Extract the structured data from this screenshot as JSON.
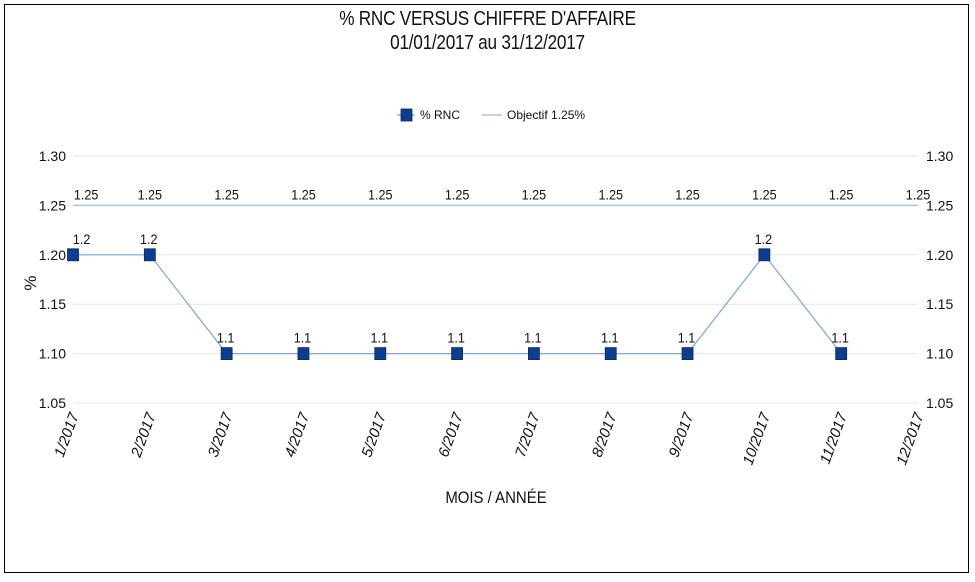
{
  "chart_data": {
    "type": "line",
    "title": "% RNC VERSUS CHIFFRE D'AFFAIRE",
    "subtitle": "01/01/2017 au 31/12/2017",
    "xlabel": "MOIS / ANNÉE",
    "ylabel": "%",
    "categories": [
      "1/2017",
      "2/2017",
      "3/2017",
      "4/2017",
      "5/2017",
      "6/2017",
      "7/2017",
      "8/2017",
      "9/2017",
      "10/2017",
      "11/2017",
      "12/2017"
    ],
    "ylim": [
      1.05,
      1.3
    ],
    "yticks": [
      "1.05",
      "1.10",
      "1.15",
      "1.20",
      "1.25",
      "1.30"
    ],
    "legend_position": "top-center",
    "grid": "horizontal",
    "series": [
      {
        "name": "% RNC",
        "color": "#0b3d91",
        "marker": "square",
        "values": [
          1.2,
          1.2,
          1.1,
          1.1,
          1.1,
          1.1,
          1.1,
          1.1,
          1.1,
          1.2,
          1.1,
          null
        ],
        "labels": [
          "1.2",
          "1.2",
          "1.1",
          "1.1",
          "1.1",
          "1.1",
          "1.1",
          "1.1",
          "1.1",
          "1.2",
          "1.1",
          ""
        ]
      },
      {
        "name": "Objectif 1.25%",
        "color": "#a7c7df",
        "marker": "none",
        "values": [
          1.25,
          1.25,
          1.25,
          1.25,
          1.25,
          1.25,
          1.25,
          1.25,
          1.25,
          1.25,
          1.25,
          1.25
        ],
        "labels": [
          "1.25",
          "1.25",
          "1.25",
          "1.25",
          "1.25",
          "1.25",
          "1.25",
          "1.25",
          "1.25",
          "1.25",
          "1.25",
          "1.25"
        ]
      }
    ]
  }
}
